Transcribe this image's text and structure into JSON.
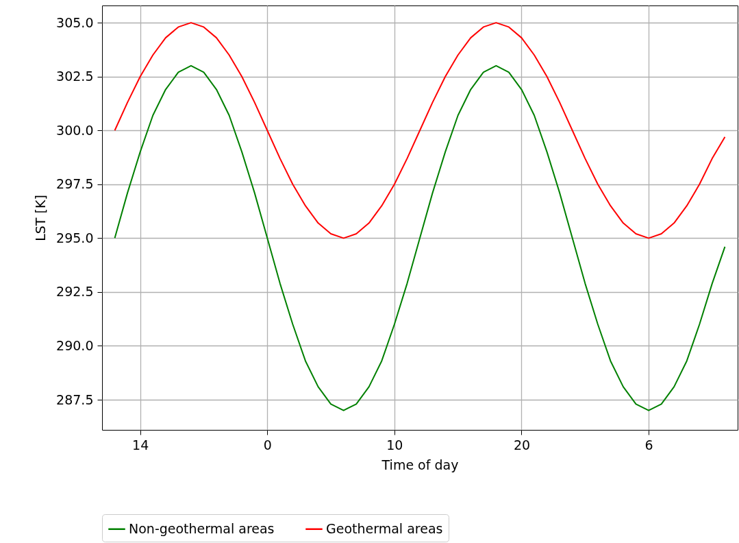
{
  "chart_data": {
    "type": "line",
    "xlabel": "Time of day",
    "ylabel": "LST [K]",
    "categories": [
      null,
      null,
      "14",
      null,
      null,
      null,
      null,
      null,
      null,
      null,
      null,
      null,
      "0",
      null,
      null,
      null,
      null,
      null,
      null,
      null,
      null,
      null,
      "10",
      null,
      null,
      null,
      null,
      null,
      null,
      null,
      null,
      null,
      "20",
      null,
      null,
      null,
      null,
      null,
      null,
      null,
      null,
      null,
      "6",
      null,
      null,
      null,
      null,
      null,
      null
    ],
    "series": [
      {
        "name": "Non-geothermal areas",
        "color": "#008000",
        "values": [
          295,
          297.1,
          299,
          300.7,
          301.9,
          302.7,
          303,
          302.7,
          301.9,
          300.7,
          299,
          297.1,
          295,
          292.9,
          291,
          289.3,
          288.1,
          287.3,
          287,
          287.3,
          288.1,
          289.3,
          291,
          292.9,
          295,
          297.1,
          299,
          300.7,
          301.9,
          302.7,
          303,
          302.7,
          301.9,
          300.7,
          299,
          297.1,
          295,
          292.9,
          291,
          289.3,
          288.1,
          287.3,
          287,
          287.3,
          288.1,
          289.3,
          291,
          292.9,
          294.6
        ]
      },
      {
        "name": "Geothermal areas",
        "color": "#ff0000",
        "values": [
          300,
          301.3,
          302.5,
          303.5,
          304.3,
          304.8,
          305,
          304.8,
          304.3,
          303.5,
          302.5,
          301.3,
          300,
          298.7,
          297.5,
          296.5,
          295.7,
          295.2,
          295,
          295.2,
          295.7,
          296.5,
          297.5,
          298.7,
          300,
          301.3,
          302.5,
          303.5,
          304.3,
          304.8,
          305,
          304.8,
          304.3,
          303.5,
          302.5,
          301.3,
          300,
          298.7,
          297.5,
          296.5,
          295.7,
          295.2,
          295,
          295.2,
          295.7,
          296.5,
          297.5,
          298.7,
          299.7
        ]
      }
    ],
    "ylim": [
      286.1,
      305.8
    ],
    "yticks": [
      {
        "value": 287.5,
        "label": "287.5"
      },
      {
        "value": 290,
        "label": "290.0"
      },
      {
        "value": 292.5,
        "label": "292.5"
      },
      {
        "value": 295,
        "label": "295.0"
      },
      {
        "value": 297.5,
        "label": "297.5"
      },
      {
        "value": 300,
        "label": "300.0"
      },
      {
        "value": 302.5,
        "label": "302.5"
      },
      {
        "value": 305,
        "label": "305.0"
      }
    ],
    "grid": true,
    "legend": "bottom",
    "line_style": "solid",
    "marker": "none"
  }
}
